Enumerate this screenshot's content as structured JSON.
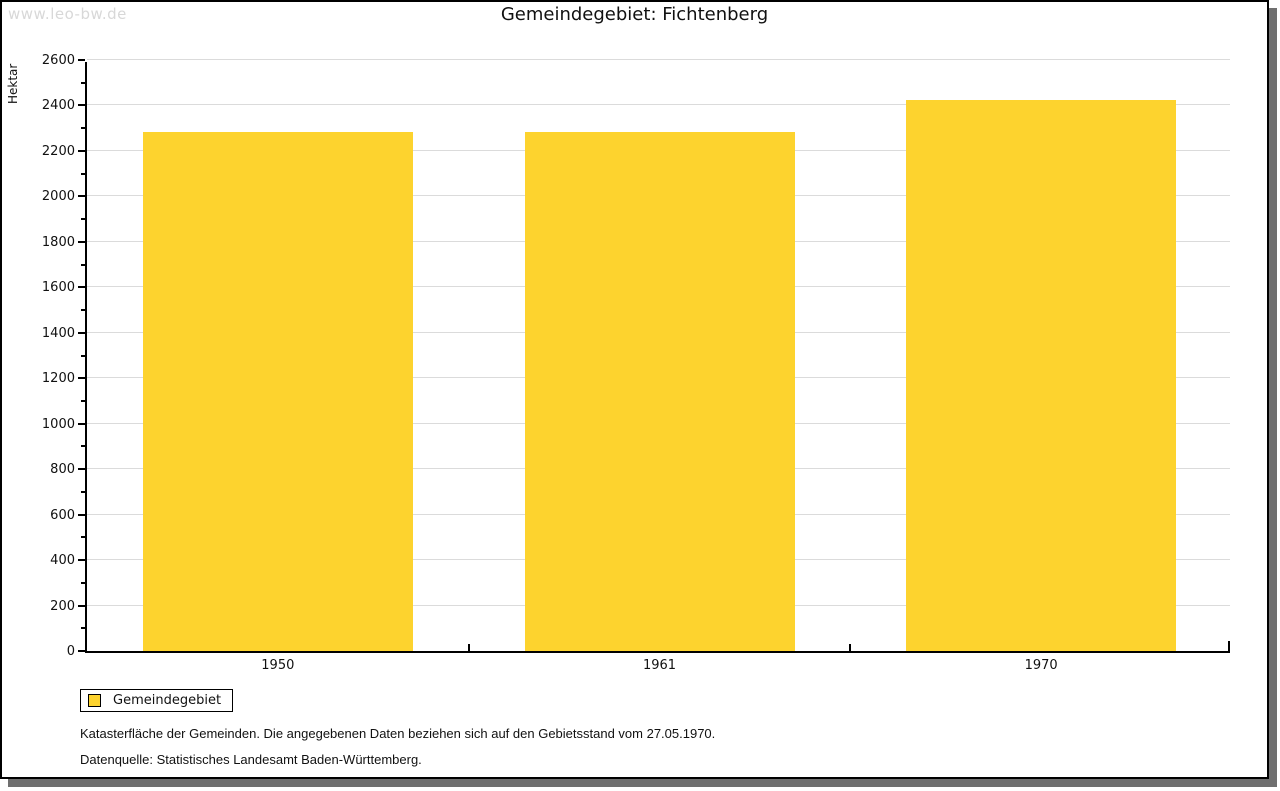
{
  "watermark": "www.leo-bw.de",
  "title": "Gemeindegebiet: Fichtenberg",
  "chart_data": {
    "type": "bar",
    "title": "Gemeindegebiet: Fichtenberg",
    "xlabel": "",
    "ylabel": "Hektar",
    "categories": [
      "1950",
      "1961",
      "1970"
    ],
    "series": [
      {
        "name": "Gemeindegebiet",
        "values": [
          2285,
          2285,
          2425
        ],
        "color": "#fdd32e"
      }
    ],
    "ylim": [
      0,
      2600
    ],
    "ytick_step": 200,
    "yminor_step": 100,
    "grid": true,
    "legend_position": "bottom-left-outside"
  },
  "legend": {
    "label": "Gemeindegebiet",
    "swatch_color": "#fdd32e"
  },
  "footnotes": {
    "line1": "Katasterfläche der Gemeinden. Die angegebenen Daten beziehen sich auf den Gebietsstand vom 27.05.1970.",
    "line2": "Datenquelle: Statistisches Landesamt Baden-Württemberg."
  },
  "colors": {
    "bar": "#fdd32e",
    "grid": "#dbdbdb",
    "axis": "#000000",
    "watermark_text": "#d8d8d8",
    "shadow": "#6f6f6f",
    "background": "#ffffff"
  }
}
